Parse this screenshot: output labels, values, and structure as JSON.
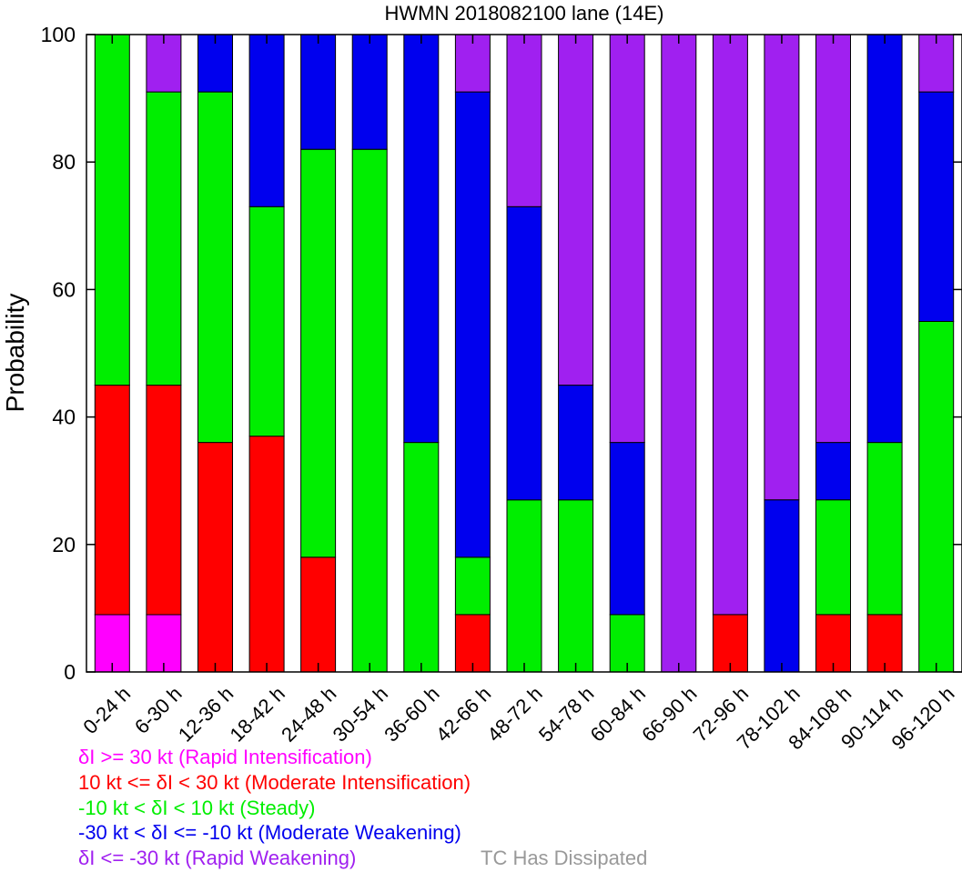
{
  "chart_data": {
    "type": "bar",
    "stacked": true,
    "title": "HWMN 2018082100 lane (14E)",
    "ylabel": "Probability",
    "xlabel": "",
    "ylim": [
      0,
      100
    ],
    "yticks": [
      "0",
      "20",
      "40",
      "60",
      "80",
      "100"
    ],
    "categories": [
      "0-24 h",
      "6-30 h",
      "12-36 h",
      "18-42 h",
      "24-48 h",
      "30-54 h",
      "36-60 h",
      "42-66 h",
      "48-72 h",
      "54-78 h",
      "60-84 h",
      "66-90 h",
      "72-96 h",
      "78-102 h",
      "84-108 h",
      "90-114 h",
      "96-120 h"
    ],
    "series": [
      {
        "name": "δI >= 30 kt (Rapid Intensification)",
        "color": "#ff00ff",
        "values": [
          9,
          9,
          0,
          0,
          0,
          0,
          0,
          0,
          0,
          0,
          0,
          0,
          0,
          0,
          0,
          0,
          0
        ]
      },
      {
        "name": "10 kt <= δI < 30 kt (Moderate Intensification)",
        "color": "#ff0000",
        "values": [
          36,
          36,
          36,
          37,
          18,
          0,
          0,
          9,
          0,
          0,
          0,
          0,
          9,
          0,
          9,
          9,
          0
        ]
      },
      {
        "name": "-10 kt < δI < 10 kt (Steady)",
        "color": "#00ee00",
        "values": [
          55,
          46,
          55,
          36,
          64,
          82,
          36,
          9,
          27,
          27,
          9,
          0,
          0,
          0,
          18,
          27,
          55
        ]
      },
      {
        "name": "-30 kt < δI <= -10 kt (Moderate Weakening)",
        "color": "#0000ee",
        "values": [
          0,
          0,
          9,
          27,
          18,
          18,
          64,
          73,
          46,
          18,
          27,
          0,
          0,
          27,
          9,
          64,
          36
        ]
      },
      {
        "name": "δI <= -30 kt (Rapid Weakening)",
        "color": "#a020f0",
        "values": [
          0,
          9,
          0,
          0,
          0,
          0,
          0,
          9,
          27,
          55,
          64,
          100,
          91,
          73,
          64,
          0,
          9
        ]
      }
    ],
    "legend": {
      "placement": "bottom",
      "entries": [
        {
          "text": "δI >= 30 kt (Rapid Intensification)",
          "color": "#ff00ff"
        },
        {
          "text": "10 kt <= δI < 30 kt (Moderate Intensification)",
          "color": "#ff0000"
        },
        {
          "text": "-10 kt < δI < 10 kt (Steady)",
          "color": "#00ee00"
        },
        {
          "text": "-30 kt < δI <= -10 kt (Moderate Weakening)",
          "color": "#0000ee"
        },
        {
          "text": "δI <= -30 kt (Rapid Weakening)",
          "color": "#a020f0"
        }
      ],
      "dissipated": {
        "text": "TC Has Dissipated",
        "color": "#999999"
      }
    }
  }
}
